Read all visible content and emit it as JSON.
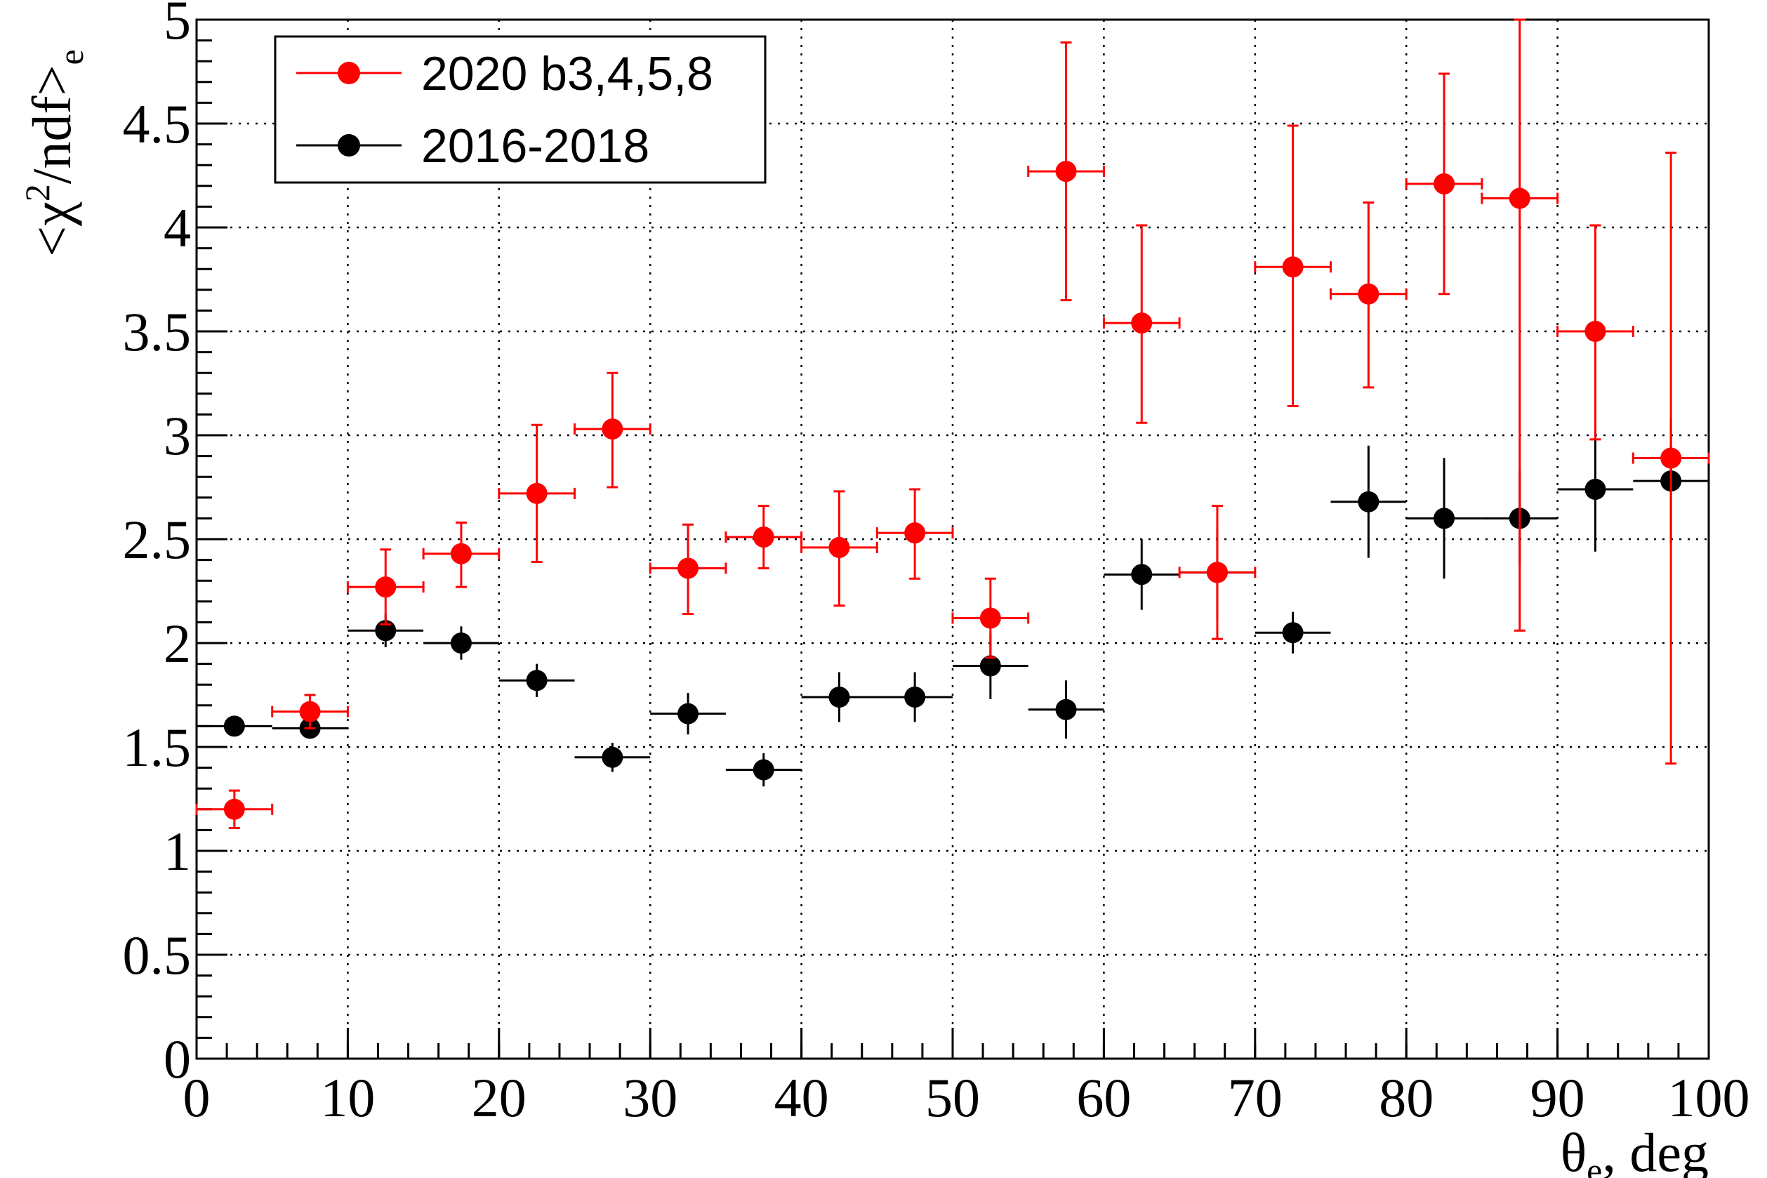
{
  "chart_data": {
    "type": "scatter",
    "xlabel": {
      "main": "θ",
      "sub": "e",
      "rest": ", deg"
    },
    "ylabel": {
      "pre": "<χ",
      "sup": "2",
      "mid": "/ndf>",
      "sub": "e"
    },
    "xlim": [
      0,
      100
    ],
    "ylim": [
      0,
      5
    ],
    "x_ticks": [
      "0",
      "10",
      "20",
      "30",
      "40",
      "50",
      "60",
      "70",
      "80",
      "90",
      "100"
    ],
    "y_ticks": [
      "0",
      "0.5",
      "1",
      "1.5",
      "2",
      "2.5",
      "3",
      "3.5",
      "4",
      "4.5",
      "5"
    ],
    "grid": true,
    "legend_position": "top-left",
    "series": [
      {
        "name": "2020 b3,4,5,8",
        "color": "#ff0000",
        "x": [
          2.5,
          7.5,
          12.5,
          17.5,
          22.5,
          27.5,
          32.5,
          37.5,
          42.5,
          47.5,
          52.5,
          57.5,
          62.5,
          67.5,
          72.5,
          77.5,
          82.5,
          87.5,
          92.5,
          97.5
        ],
        "y": [
          1.2,
          1.67,
          2.27,
          2.43,
          2.72,
          3.03,
          2.36,
          2.51,
          2.46,
          2.53,
          2.12,
          4.27,
          3.54,
          2.34,
          3.81,
          3.68,
          4.21,
          4.14,
          3.5,
          2.89
        ],
        "x_err": [
          2.5,
          2.5,
          2.5,
          2.5,
          2.5,
          2.5,
          2.5,
          2.5,
          2.5,
          2.5,
          2.5,
          2.5,
          2.5,
          2.5,
          2.5,
          2.5,
          2.5,
          2.5,
          2.5,
          2.5
        ],
        "y_err_low": [
          0.09,
          0.08,
          0.18,
          0.16,
          0.33,
          0.28,
          0.22,
          0.15,
          0.28,
          0.22,
          0.19,
          0.62,
          0.48,
          0.32,
          0.67,
          0.45,
          0.53,
          2.08,
          0.52,
          1.47
        ],
        "y_err_high": [
          0.09,
          0.08,
          0.18,
          0.15,
          0.33,
          0.27,
          0.21,
          0.15,
          0.27,
          0.21,
          0.19,
          0.62,
          0.47,
          0.32,
          0.68,
          0.44,
          0.53,
          0.86,
          0.51,
          1.47
        ]
      },
      {
        "name": "2016-2018",
        "color": "#000000",
        "x": [
          2.5,
          7.5,
          12.5,
          17.5,
          22.5,
          27.5,
          32.5,
          37.5,
          42.5,
          47.5,
          52.5,
          57.5,
          62.5,
          67.5,
          72.5,
          77.5,
          82.5,
          87.5,
          92.5,
          97.5
        ],
        "y": [
          1.6,
          1.59,
          2.06,
          2.0,
          1.82,
          1.45,
          1.66,
          1.39,
          1.74,
          1.74,
          1.89,
          1.68,
          2.33,
          2.34,
          2.05,
          2.68,
          2.6,
          2.6,
          2.74,
          2.78
        ],
        "x_err": [
          2.5,
          2.5,
          2.5,
          2.5,
          2.5,
          2.5,
          2.5,
          2.5,
          2.5,
          2.5,
          2.5,
          2.5,
          2.5,
          2.5,
          2.5,
          2.5,
          2.5,
          2.5,
          2.5,
          2.5
        ],
        "y_err_low": [
          0.02,
          0.02,
          0.08,
          0.08,
          0.08,
          0.07,
          0.1,
          0.08,
          0.12,
          0.12,
          0.16,
          0.14,
          0.17,
          0.22,
          0.1,
          0.27,
          0.29,
          0.23,
          0.3,
          0.3
        ],
        "y_err_high": [
          0.02,
          0.02,
          0.08,
          0.08,
          0.08,
          0.07,
          0.1,
          0.08,
          0.12,
          0.12,
          0.16,
          0.14,
          0.17,
          0.22,
          0.1,
          0.27,
          0.29,
          0.23,
          0.3,
          0.3
        ]
      }
    ]
  }
}
